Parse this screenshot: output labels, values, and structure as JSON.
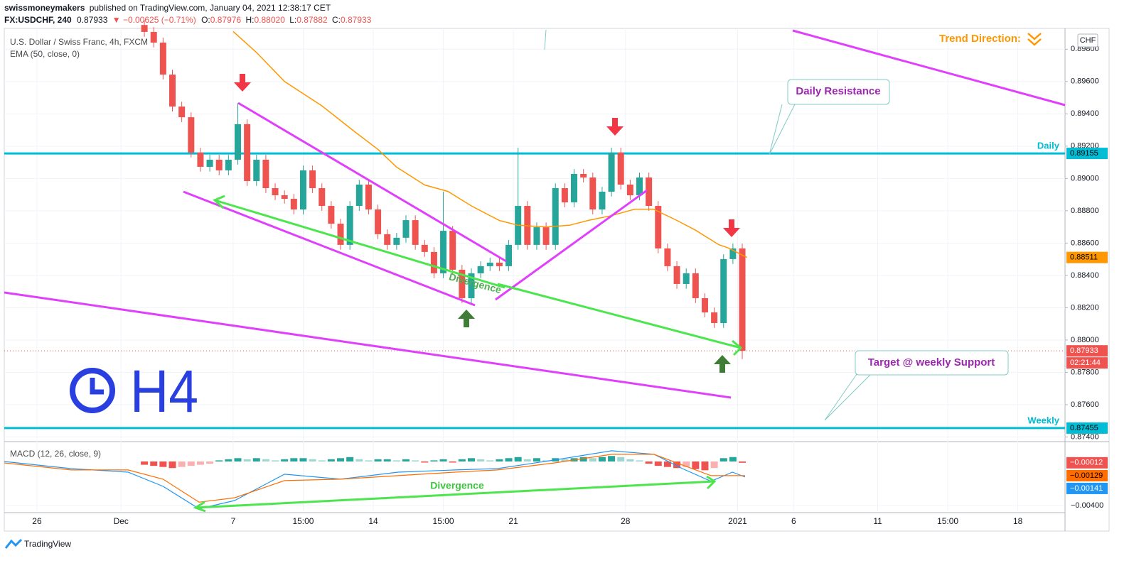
{
  "header": {
    "publisher": "swissmoneymakers",
    "published": "published on TradingView.com, January 04, 2021 12:38:17 CET",
    "symbol": "FX:USDCHF, 240",
    "last": "0.87933",
    "change": "▼ −0.00625 (−0.71%)",
    "ohlc": [
      {
        "label": "O:",
        "value": "0.87976"
      },
      {
        "label": "H:",
        "value": "0.88020"
      },
      {
        "label": "L:",
        "value": "0.87882"
      },
      {
        "label": "C:",
        "value": "0.87933"
      }
    ]
  },
  "chart_data": [
    {
      "type": "candlestick",
      "title": "U.S. Dollar / Swiss Franc, 4h, FXCM",
      "currency": "CHF",
      "up_color": "#26a69a",
      "down_color": "#ef5350",
      "x": [
        30,
        32,
        34,
        36,
        38,
        40,
        42,
        44,
        46,
        48,
        50,
        52,
        54,
        56,
        58,
        60,
        62,
        64,
        66,
        68,
        70,
        72,
        74,
        76,
        78,
        80,
        82,
        84,
        86,
        88,
        90,
        92,
        94,
        96,
        98,
        100,
        102,
        104,
        106,
        108,
        110,
        112,
        114,
        116,
        118,
        120,
        122,
        124,
        126,
        128,
        130,
        132,
        134,
        136,
        138,
        140,
        142,
        144,
        146,
        148,
        150,
        152,
        154,
        156,
        158
      ],
      "open": [
        0.8995,
        0.89907,
        0.89841,
        0.89643,
        0.89445,
        0.89379,
        0.8916,
        0.89072,
        0.89116,
        0.8905,
        0.89116,
        0.89336,
        0.88984,
        0.89116,
        0.8894,
        0.88896,
        0.88874,
        0.88808,
        0.8905,
        0.8894,
        0.8883,
        0.8872,
        0.88589,
        0.8883,
        0.88962,
        0.88808,
        0.88655,
        0.88589,
        0.88633,
        0.88742,
        0.88589,
        0.88545,
        0.88413,
        0.88676,
        0.88435,
        0.88259,
        0.88413,
        0.88457,
        0.88479,
        0.88457,
        0.88589,
        0.8883,
        0.88589,
        0.88698,
        0.88589,
        0.8894,
        0.88852,
        0.89028,
        0.89006,
        0.88808,
        0.88918,
        0.8916,
        0.88962,
        0.88896,
        0.89006,
        0.8883,
        0.88567,
        0.88457,
        0.88347,
        0.88413,
        0.88259,
        0.88171,
        0.88105,
        0.88501,
        0.88567
      ],
      "high": [
        0.8998,
        0.89937,
        0.89871,
        0.89673,
        0.89475,
        0.89409,
        0.8919,
        0.89146,
        0.89146,
        0.89146,
        0.89467,
        0.89366,
        0.89146,
        0.89146,
        0.8897,
        0.88926,
        0.88904,
        0.8908,
        0.8908,
        0.8897,
        0.8886,
        0.8875,
        0.8886,
        0.88992,
        0.88992,
        0.88838,
        0.88685,
        0.88663,
        0.88772,
        0.88772,
        0.88619,
        0.88575,
        0.88918,
        0.88706,
        0.88465,
        0.88443,
        0.88487,
        0.88509,
        0.88509,
        0.88619,
        0.8919,
        0.8886,
        0.88728,
        0.88728,
        0.8897,
        0.8897,
        0.89058,
        0.89058,
        0.89036,
        0.88948,
        0.8919,
        0.8919,
        0.88992,
        0.89036,
        0.89036,
        0.8886,
        0.88597,
        0.88487,
        0.88443,
        0.88443,
        0.88289,
        0.88201,
        0.88531,
        0.88597,
        0.88597
      ],
      "low": [
        0.89877,
        0.89811,
        0.89613,
        0.89415,
        0.89349,
        0.8913,
        0.89042,
        0.89042,
        0.8902,
        0.8902,
        0.89086,
        0.88954,
        0.88954,
        0.8891,
        0.88866,
        0.88844,
        0.88778,
        0.88778,
        0.8891,
        0.888,
        0.8869,
        0.88559,
        0.88559,
        0.888,
        0.88778,
        0.88625,
        0.88559,
        0.88559,
        0.88603,
        0.88559,
        0.88515,
        0.88383,
        0.88383,
        0.88405,
        0.88229,
        0.88229,
        0.88383,
        0.88427,
        0.88427,
        0.88427,
        0.88559,
        0.88559,
        0.88559,
        0.88559,
        0.88559,
        0.88822,
        0.88822,
        0.88976,
        0.88778,
        0.88778,
        0.88888,
        0.88932,
        0.88866,
        0.88866,
        0.888,
        0.88537,
        0.88427,
        0.88317,
        0.88317,
        0.88229,
        0.88141,
        0.88075,
        0.88075,
        0.88471,
        0.87882
      ],
      "close": [
        0.89907,
        0.89841,
        0.89643,
        0.89445,
        0.89379,
        0.8916,
        0.89072,
        0.89116,
        0.8905,
        0.89116,
        0.89336,
        0.88984,
        0.89116,
        0.8894,
        0.88896,
        0.88874,
        0.88808,
        0.8905,
        0.8894,
        0.8883,
        0.8872,
        0.88589,
        0.8883,
        0.88962,
        0.88808,
        0.88655,
        0.88589,
        0.88633,
        0.88742,
        0.88589,
        0.88545,
        0.88413,
        0.88676,
        0.88435,
        0.88259,
        0.88413,
        0.88457,
        0.88479,
        0.88457,
        0.88589,
        0.8883,
        0.88589,
        0.88698,
        0.88589,
        0.8894,
        0.88852,
        0.89028,
        0.89006,
        0.88808,
        0.88918,
        0.8916,
        0.88962,
        0.88896,
        0.89006,
        0.8883,
        0.88567,
        0.88457,
        0.88347,
        0.88413,
        0.88259,
        0.88171,
        0.88105,
        0.88501,
        0.88567,
        0.87933
      ],
      "countdown": "02:21:44",
      "ema": {
        "name": "EMA (50, close, 0)",
        "color": "#ff9800",
        "x": [
          49,
          54,
          60,
          68,
          75,
          80,
          84,
          90,
          95,
          100,
          106,
          110,
          116,
          121,
          125,
          130,
          135,
          139,
          144,
          148,
          153,
          155,
          159
        ],
        "values": [
          0.8991,
          0.8978,
          0.896,
          0.8945,
          0.8929,
          0.8918,
          0.8907,
          0.8896,
          0.8892,
          0.8883,
          0.8874,
          0.8871,
          0.887,
          0.8871,
          0.8874,
          0.8877,
          0.8881,
          0.8881,
          0.8874,
          0.8868,
          0.8859,
          0.8857,
          0.88511
        ]
      },
      "levels": [
        {
          "name": "Daily",
          "value": 0.89155,
          "color": "#00bcd4"
        },
        {
          "name": "Weekly",
          "value": 0.87455,
          "color": "#00bcd4"
        }
      ],
      "xlim": [
        0,
        227.1
      ],
      "ylim": [
        0.8738,
        0.8992
      ],
      "xticks": [
        {
          "value": 7,
          "label": "26"
        },
        {
          "value": 25,
          "label": "Dec"
        },
        {
          "value": 49,
          "label": "7"
        },
        {
          "value": 64,
          "label": "15:00"
        },
        {
          "value": 79,
          "label": "14"
        },
        {
          "value": 94,
          "label": "15:00"
        },
        {
          "value": 109,
          "label": "21"
        },
        {
          "value": 133,
          "label": "28"
        },
        {
          "value": 157,
          "label": "2021"
        },
        {
          "value": 169,
          "label": "6"
        },
        {
          "value": 187,
          "label": "11"
        },
        {
          "value": 202,
          "label": "15:00"
        },
        {
          "value": 217,
          "label": "18"
        }
      ],
      "yticks": [
        {
          "value": 0.874,
          "label": "0.87400"
        },
        {
          "value": 0.876,
          "label": "0.87600"
        },
        {
          "value": 0.878,
          "label": "0.87800"
        },
        {
          "value": 0.88,
          "label": "0.88000"
        },
        {
          "value": 0.882,
          "label": "0.88200"
        },
        {
          "value": 0.884,
          "label": "0.88400"
        },
        {
          "value": 0.886,
          "label": "0.88600"
        },
        {
          "value": 0.888,
          "label": "0.88800"
        },
        {
          "value": 0.89,
          "label": "0.89000"
        },
        {
          "value": 0.892,
          "label": "0.89200"
        },
        {
          "value": 0.894,
          "label": "0.89400"
        },
        {
          "value": 0.896,
          "label": "0.89600"
        },
        {
          "value": 0.898,
          "label": "0.89800"
        }
      ],
      "grid": true
    },
    {
      "type": "macd",
      "title": "MACD (12, 26, close, 9)",
      "histogram": {
        "x": [
          30,
          32,
          34,
          36,
          38,
          40,
          42,
          44,
          46,
          48,
          50,
          52,
          54,
          56,
          58,
          60,
          62,
          64,
          66,
          68,
          70,
          72,
          74,
          76,
          78,
          80,
          82,
          84,
          86,
          88,
          90,
          92,
          94,
          96,
          98,
          100,
          102,
          104,
          106,
          108,
          110,
          112,
          114,
          116,
          118,
          120,
          122,
          124,
          126,
          128,
          130,
          132,
          134,
          136,
          138,
          140,
          142,
          144,
          146,
          148,
          150,
          152,
          154,
          156,
          158
        ],
        "values": [
          -0.0003,
          -0.0004,
          -0.0005,
          -0.0006,
          -0.0005,
          -0.0004,
          -0.0003,
          -0.0002,
          0.0001,
          0.0002,
          0.0003,
          0.0002,
          0.0003,
          0.0002,
          0.0001,
          0.0002,
          0.0003,
          0.0003,
          0.0002,
          0.0001,
          0.0002,
          0.0003,
          0.0004,
          0.0002,
          0.0001,
          0.0002,
          0.0002,
          0.0001,
          0.0002,
          0.0001,
          -0.0001,
          0.0001,
          0.0002,
          -0.0001,
          0.0002,
          0.0003,
          0.0002,
          0.0001,
          0.0002,
          0.0003,
          0.0004,
          0.0002,
          0.0003,
          0.0001,
          0.0003,
          0.0002,
          0.0003,
          0.0004,
          0.0003,
          0.0004,
          0.0005,
          0.0004,
          0.0002,
          0.0001,
          -0.0002,
          -0.0004,
          -0.0005,
          -0.0006,
          -0.0005,
          -0.0007,
          -0.0008,
          -0.0006,
          0.0003,
          0.0004,
          -0.00012
        ],
        "last_label": "−0.00012",
        "up_color": "#26a69a",
        "down_color": "#ef5350"
      },
      "series": [
        {
          "color": "#2196f3",
          "x": [
            0,
            14.3,
            26.5,
            34,
            41.7,
            49.3,
            60,
            72,
            84.3,
            96.5,
            105.6,
            117.8,
            130,
            139.1,
            145.2,
            151.3,
            155.9,
            158.6
          ],
          "values": [
            0,
            -0.00065,
            -0.00097,
            -0.00226,
            -0.0043,
            -0.00355,
            -0.00116,
            -0.00161,
            -0.00097,
            -0.00077,
            -0.00065,
            0.00013,
            0.00097,
            0.00065,
            -0.00065,
            -0.0018,
            -0.00097,
            -0.00141
          ],
          "last_label": "−0.00141"
        },
        {
          "color": "#ff6d00",
          "x": [
            0,
            14.3,
            26.5,
            34,
            41.7,
            49.3,
            60,
            72,
            84.3,
            96.5,
            105.6,
            117.8,
            130,
            139.1,
            145.2,
            151.3,
            155.9,
            158.6
          ],
          "values": [
            -0.00013,
            -0.00077,
            -0.00077,
            -0.00161,
            -0.0037,
            -0.0033,
            -0.00174,
            -0.00161,
            -0.00129,
            -0.00097,
            -0.00077,
            -0.00013,
            0.00065,
            0.00065,
            -0.00032,
            -0.00129,
            -0.00129,
            -0.00129
          ],
          "last_label": "−0.00129"
        }
      ],
      "xlim": [
        0,
        227.1
      ],
      "ylim": [
        -0.00452,
        0.00161
      ],
      "yticks": [
        {
          "value": -0.004,
          "label": "−0.00400"
        }
      ]
    }
  ],
  "annotations": {
    "trend": "Trend Direction:",
    "daily_resistance": "Daily Resistance",
    "target": "Target @ weekly Support",
    "divergence_price": "Divergence",
    "divergence_macd": "Divergence",
    "timeframe": "H4"
  },
  "footer": "TradingView"
}
